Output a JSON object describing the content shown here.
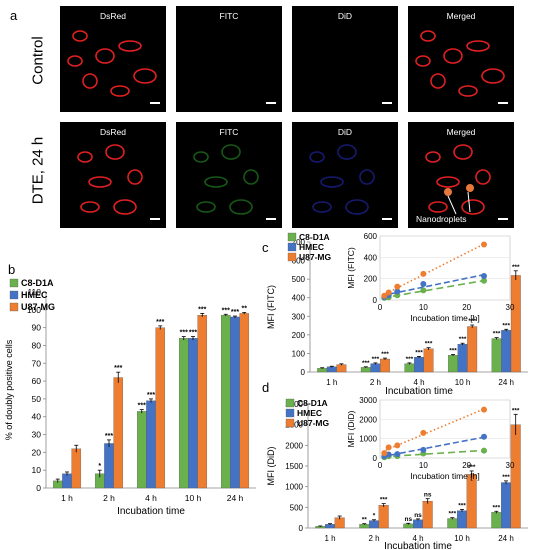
{
  "panel_a": {
    "letter": "a",
    "row_labels": [
      "Control",
      "DTE, 24 h"
    ],
    "channel_labels": [
      "DsRed",
      "FITC",
      "DiD",
      "Merged"
    ],
    "annotation": "Nanodroplets",
    "colors": {
      "dsred": "#e02020",
      "fitc": "#2aa02a",
      "did": "#2830c8",
      "merged": "#e8783a"
    }
  },
  "panel_b": {
    "letter": "b"
  },
  "panel_c": {
    "letter": "c"
  },
  "panel_d": {
    "letter": "d"
  },
  "chart_data": [
    {
      "id": "b",
      "type": "bar",
      "categories": [
        "1 h",
        "2 h",
        "4 h",
        "10 h",
        "24 h"
      ],
      "xlabel": "Incubation time",
      "ylabel": "% of doubly positive cells",
      "ylim": [
        0,
        110
      ],
      "yticks": [
        0,
        10,
        20,
        30,
        40,
        50,
        60,
        70,
        80,
        90,
        100,
        110
      ],
      "series": [
        {
          "name": "C8-D1A",
          "color": "#6ab04c",
          "values": [
            4,
            8,
            43,
            84,
            97
          ],
          "errors": [
            1,
            2,
            1,
            1,
            0.5
          ]
        },
        {
          "name": "HMEC",
          "color": "#4472c4",
          "values": [
            8,
            25,
            49,
            84,
            96
          ],
          "errors": [
            1,
            2,
            1,
            1,
            0.5
          ]
        },
        {
          "name": "U87-MG",
          "color": "#ed7d31",
          "values": [
            22,
            62,
            90,
            97,
            98
          ],
          "errors": [
            2,
            3,
            1,
            1,
            0.5
          ]
        }
      ],
      "significance": [
        [
          "",
          "*",
          "***",
          "***",
          "***"
        ],
        [
          "",
          "***",
          "***",
          "***",
          "***"
        ],
        [
          "",
          "***",
          "***",
          "***",
          "**"
        ]
      ],
      "legend_position": "top-left"
    },
    {
      "id": "c",
      "type": "bar",
      "categories": [
        "1 h",
        "2 h",
        "4 h",
        "10 h",
        "24 h"
      ],
      "xlabel": "Incubation time",
      "ylabel": "MFI (FITC)",
      "ylim": [
        0,
        700
      ],
      "yticks": [
        0,
        100,
        200,
        300,
        400,
        500,
        600,
        700
      ],
      "series": [
        {
          "name": "C8-D1A",
          "color": "#6ab04c",
          "values": [
            20,
            25,
            45,
            90,
            180
          ],
          "errors": [
            3,
            3,
            4,
            4,
            5
          ]
        },
        {
          "name": "HMEC",
          "color": "#4472c4",
          "values": [
            28,
            45,
            80,
            150,
            225
          ],
          "errors": [
            3,
            4,
            4,
            5,
            5
          ]
        },
        {
          "name": "U87-MG",
          "color": "#ed7d31",
          "values": [
            40,
            70,
            125,
            245,
            520
          ],
          "errors": [
            4,
            5,
            6,
            8,
            25
          ]
        }
      ],
      "significance": [
        [
          "",
          "***",
          "***",
          "***",
          "***"
        ],
        [
          "",
          "***",
          "***",
          "***",
          "***"
        ],
        [
          "",
          "***",
          "***",
          "***",
          "***"
        ]
      ],
      "legend_position": "top-left",
      "inset": {
        "type": "scatter",
        "xlabel": "Incubation time [h]",
        "ylabel": "MFI (FITC)",
        "xlim": [
          0,
          30
        ],
        "ylim": [
          0,
          600
        ],
        "xticks": [
          0,
          10,
          20,
          30
        ],
        "yticks": [
          0,
          200,
          400,
          600
        ],
        "x": [
          1,
          2,
          4,
          10,
          24
        ],
        "series": [
          {
            "name": "C8-D1A",
            "color": "#6ab04c",
            "values": [
              20,
              25,
              45,
              90,
              180
            ]
          },
          {
            "name": "HMEC",
            "color": "#4472c4",
            "values": [
              28,
              45,
              80,
              150,
              225
            ]
          },
          {
            "name": "U87-MG",
            "color": "#ed7d31",
            "values": [
              40,
              70,
              125,
              245,
              520
            ]
          }
        ]
      }
    },
    {
      "id": "d",
      "type": "bar",
      "categories": [
        "1 h",
        "2 h",
        "4 h",
        "10 h",
        "24 h"
      ],
      "xlabel": "Incubation time",
      "ylabel": "MFI (DiD)",
      "ylim": [
        0,
        3000
      ],
      "yticks": [
        0,
        500,
        1000,
        1500,
        2000,
        2500,
        3000
      ],
      "series": [
        {
          "name": "C8-D1A",
          "color": "#6ab04c",
          "values": [
            40,
            90,
            100,
            230,
            380
          ],
          "errors": [
            10,
            15,
            15,
            20,
            25
          ]
        },
        {
          "name": "HMEC",
          "color": "#4472c4",
          "values": [
            90,
            180,
            200,
            420,
            1100
          ],
          "errors": [
            15,
            20,
            20,
            30,
            40
          ]
        },
        {
          "name": "U87-MG",
          "color": "#ed7d31",
          "values": [
            250,
            550,
            650,
            1300,
            2500
          ],
          "errors": [
            40,
            40,
            60,
            80,
            250
          ]
        }
      ],
      "significance": [
        [
          "",
          "**",
          "ns",
          "***",
          "***"
        ],
        [
          "",
          "*",
          "ns",
          "***",
          "***"
        ],
        [
          "",
          "***",
          "ns",
          "***",
          "***"
        ]
      ],
      "legend_position": "top-left",
      "inset": {
        "type": "scatter",
        "xlabel": "Incubation time [h]",
        "ylabel": "MFI (DiD)",
        "xlim": [
          0,
          30
        ],
        "ylim": [
          0,
          3000
        ],
        "xticks": [
          0,
          10,
          20,
          30
        ],
        "yticks": [
          0,
          1000,
          2000,
          3000
        ],
        "x": [
          1,
          2,
          4,
          10,
          24
        ],
        "series": [
          {
            "name": "C8-D1A",
            "color": "#6ab04c",
            "values": [
              40,
              90,
              100,
              230,
              380
            ]
          },
          {
            "name": "HMEC",
            "color": "#4472c4",
            "values": [
              90,
              180,
              200,
              420,
              1100
            ]
          },
          {
            "name": "U87-MG",
            "color": "#ed7d31",
            "values": [
              250,
              550,
              650,
              1300,
              2500
            ]
          }
        ]
      }
    }
  ]
}
